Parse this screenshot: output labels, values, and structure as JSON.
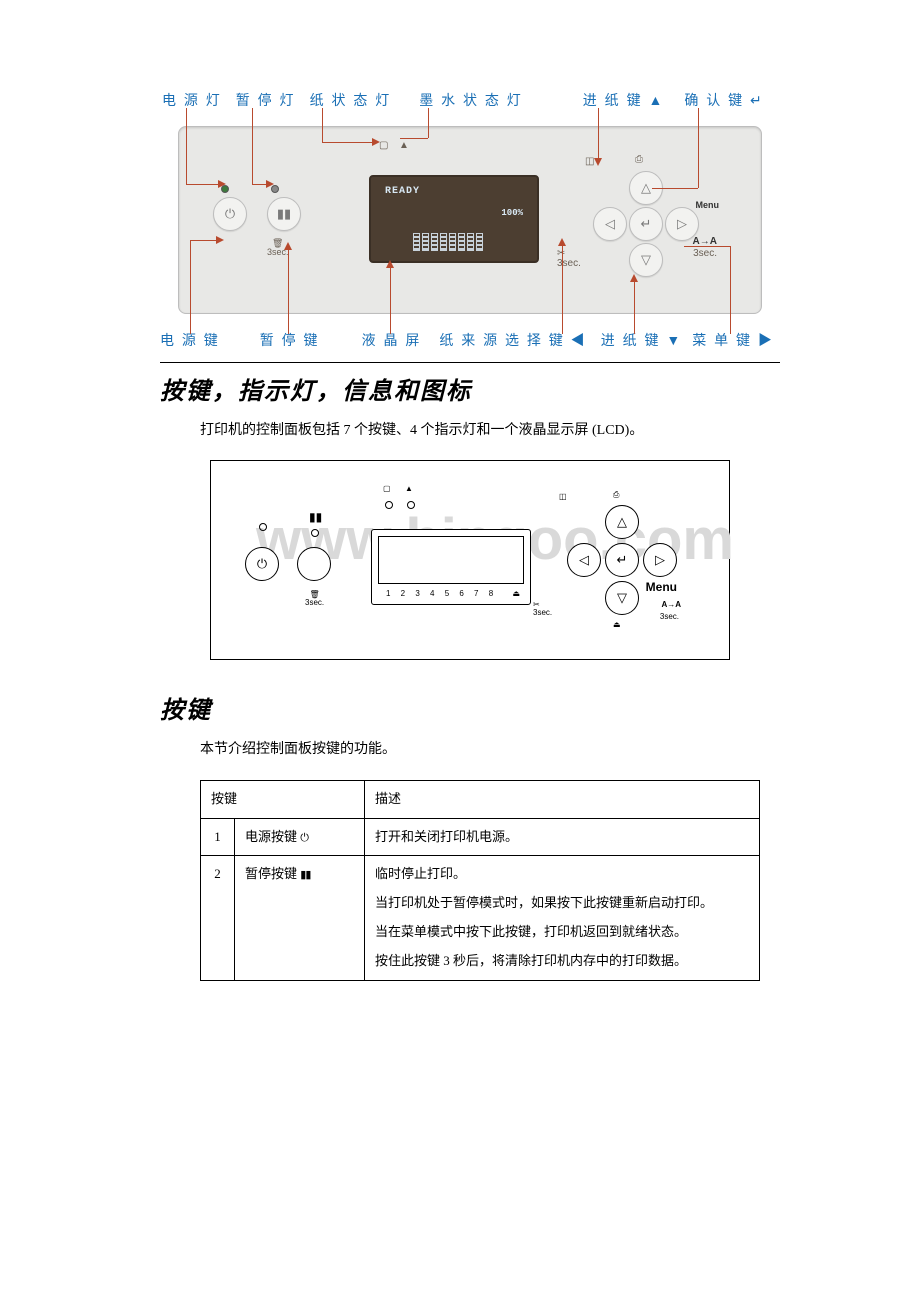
{
  "figure1": {
    "labels_top": {
      "power_led": "电 源 灯",
      "pause_led": "暂 停 灯",
      "paper_led": "纸 状 态 灯",
      "ink_led": "墨 水 状 态 灯",
      "feed_up": "进 纸 键 ▲",
      "confirm": "确 认 键 ↵"
    },
    "labels_bottom": {
      "power_btn": "电 源 键",
      "pause_btn": "暂 停 键",
      "lcd": "液 晶 屏",
      "source_btn": "纸 来 源 选 择 键 ◀",
      "feed_down": "进 纸 键  ▼",
      "menu_btn": "菜 单 键 ▶"
    },
    "label_color": "#1a6fb5",
    "callout_color": "#b84a2e",
    "panel_bg": "#e8e8e6",
    "screen": {
      "bg": "#4c3e31",
      "text_color": "#d8e8f4",
      "line1": "READY",
      "line2": "100%",
      "menu": "Menu",
      "aa": "A→A",
      "sec": "3sec."
    }
  },
  "section1": {
    "title": "按键，指示灯，信息和图标",
    "para": "打印机的控制面板包括 7 个按键、4 个指示灯和一个液晶显示屏 (LCD)。"
  },
  "figure2": {
    "watermark": "www.bingoo.com",
    "watermark_color": "#d9d9d9",
    "numbers": "1 2 3 4 5 6 7 8",
    "menu": "Menu",
    "aa": "A→A",
    "sec": "3sec."
  },
  "section2": {
    "title": "按键",
    "para": "本节介绍控制面板按键的功能。"
  },
  "table": {
    "head": {
      "col1": "按键",
      "col2": "描述"
    },
    "rows": [
      {
        "num": "1",
        "name": "电源按键",
        "icon": "⏻",
        "desc_parts": [
          "打开和关闭打印机电源。"
        ]
      },
      {
        "num": "2",
        "name": "暂停按键",
        "icon": "▮▮",
        "desc_parts": [
          "临时停止打印。",
          "当打印机处于暂停模式时，如果按下此按键重新启动打印。",
          "当在菜单模式中按下此按键，打印机返回到就绪状态。",
          "按住此按键 3 秒后，将清除打印机内存中的打印数据。"
        ]
      }
    ]
  }
}
